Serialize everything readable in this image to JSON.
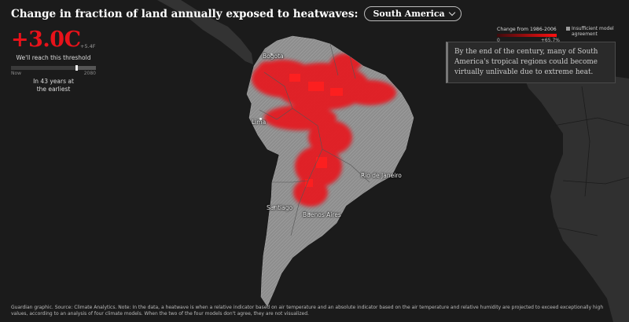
{
  "header": {
    "title": "Change in fraction of land annually exposed to heatwaves:",
    "region": "South America"
  },
  "threshold": {
    "celsius": "+3.0C",
    "fahrenheit": "+5.4F",
    "caption": "We'll reach this threshold",
    "timeline_start": "Now",
    "timeline_end": "2080",
    "years_line1": "In 43 years at",
    "years_line2": "the earliest"
  },
  "legend": {
    "title": "Change from 1986-2006",
    "min_label": "0",
    "max_label": "+65.7%",
    "insufficient_label": "Insufficient model agreement",
    "gradient_start": "#3d0b0d",
    "gradient_end": "#ff1010",
    "insufficient_color": "#9a9a9a"
  },
  "annotation": "By the end of the century, many of South America's tropical regions could become virtually unlivable due to extreme heat.",
  "cities": [
    {
      "name": "Bogota"
    },
    {
      "name": "Lima"
    },
    {
      "name": "Rio de Janeiro"
    },
    {
      "name": "Santiago"
    },
    {
      "name": "Buenos Aires"
    }
  ],
  "footer": "Guardian graphic. Source: Climate Analytics. Note: In the data, a heatwave is when a relative indicator based on air temperature and an absolute indicator based on the air temperature and relative humidity are projected to exceed exceptionally high values, according to an analysis of four climate models. When the two of the four models don't agree, they are not visualized.",
  "colors": {
    "background": "#1b1b1b",
    "land": "#3a3a3a",
    "continent": "#8c8c8c",
    "heat": "#e8121a"
  }
}
